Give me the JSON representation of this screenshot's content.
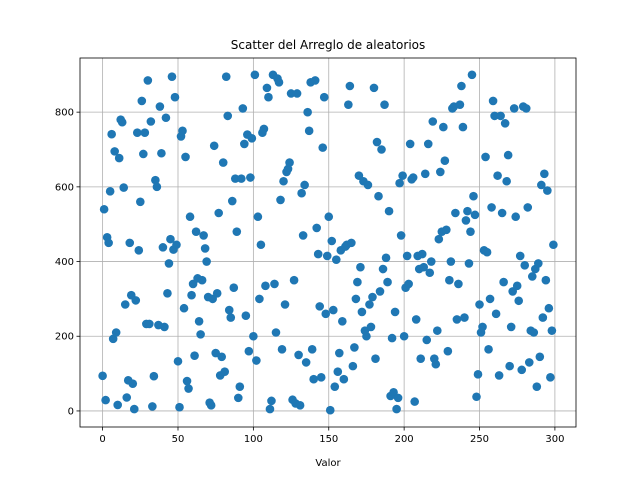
{
  "chart_data": {
    "type": "scatter",
    "title": "Scatter del Arreglo de aleatorios",
    "x_label": "Valor",
    "color": "#1f77b4",
    "grid": true,
    "xlim": [
      -15,
      314
    ],
    "ylim": [
      -43,
      945
    ],
    "xticks": [
      0,
      50,
      100,
      150,
      200,
      250,
      300
    ],
    "yticks": [
      0,
      200,
      400,
      600,
      800
    ],
    "x": [
      0,
      1,
      2,
      3,
      4,
      5,
      6,
      7,
      8,
      9,
      10,
      11,
      12,
      13,
      14,
      15,
      16,
      17,
      18,
      19,
      20,
      21,
      22,
      23,
      24,
      25,
      26,
      27,
      28,
      29,
      30,
      31,
      32,
      33,
      34,
      35,
      36,
      37,
      38,
      39,
      40,
      41,
      42,
      43,
      44,
      45,
      46,
      47,
      48,
      49,
      50,
      51,
      52,
      53,
      54,
      55,
      56,
      57,
      58,
      59,
      60,
      61,
      62,
      63,
      64,
      65,
      66,
      67,
      68,
      69,
      70,
      71,
      72,
      73,
      74,
      75,
      76,
      77,
      78,
      79,
      80,
      81,
      82,
      83,
      84,
      85,
      86,
      87,
      88,
      89,
      90,
      91,
      92,
      93,
      94,
      95,
      96,
      97,
      98,
      99,
      100,
      101,
      102,
      103,
      104,
      105,
      106,
      107,
      108,
      109,
      110,
      111,
      112,
      113,
      114,
      115,
      116,
      117,
      118,
      119,
      120,
      121,
      122,
      123,
      124,
      125,
      126,
      127,
      128,
      129,
      130,
      131,
      132,
      133,
      134,
      135,
      136,
      137,
      138,
      139,
      140,
      141,
      142,
      143,
      144,
      145,
      146,
      147,
      148,
      149,
      150,
      151,
      152,
      153,
      154,
      155,
      156,
      157,
      158,
      159,
      160,
      161,
      162,
      163,
      164,
      165,
      166,
      167,
      168,
      169,
      170,
      171,
      172,
      173,
      174,
      175,
      176,
      177,
      178,
      179,
      180,
      181,
      182,
      183,
      184,
      185,
      186,
      187,
      188,
      189,
      190,
      191,
      192,
      193,
      194,
      195,
      196,
      197,
      198,
      199,
      200,
      201,
      202,
      203,
      204,
      205,
      206,
      207,
      208,
      209,
      210,
      211,
      212,
      213,
      214,
      215,
      216,
      217,
      218,
      219,
      220,
      221,
      222,
      223,
      224,
      225,
      226,
      227,
      228,
      229,
      230,
      231,
      232,
      233,
      234,
      235,
      236,
      237,
      238,
      239,
      240,
      241,
      242,
      243,
      244,
      245,
      246,
      247,
      248,
      249,
      250,
      251,
      252,
      253,
      254,
      255,
      256,
      257,
      258,
      259,
      260,
      261,
      262,
      263,
      264,
      265,
      266,
      267,
      268,
      269,
      270,
      271,
      272,
      273,
      274,
      275,
      276,
      277,
      278,
      279,
      280,
      281,
      282,
      283,
      284,
      285,
      286,
      287,
      288,
      289,
      290,
      291,
      292,
      293,
      294,
      295,
      296,
      297,
      298,
      299
    ],
    "values": [
      94,
      540,
      29,
      465,
      450,
      588,
      741,
      193,
      695,
      210,
      16,
      677,
      780,
      773,
      598,
      285,
      36,
      82,
      450,
      310,
      73,
      5,
      296,
      745,
      430,
      560,
      830,
      688,
      745,
      233,
      885,
      233,
      775,
      12,
      93,
      618,
      600,
      230,
      815,
      690,
      438,
      225,
      785,
      315,
      395,
      460,
      895,
      432,
      840,
      445,
      133,
      10,
      735,
      750,
      275,
      680,
      80,
      60,
      520,
      310,
      340,
      148,
      480,
      355,
      240,
      205,
      350,
      470,
      435,
      400,
      305,
      22,
      15,
      300,
      710,
      155,
      315,
      530,
      95,
      145,
      665,
      105,
      895,
      790,
      270,
      250,
      562,
      330,
      622,
      480,
      35,
      65,
      622,
      810,
      715,
      255,
      740,
      160,
      625,
      730,
      200,
      900,
      135,
      520,
      300,
      445,
      745,
      755,
      335,
      865,
      840,
      5,
      27,
      900,
      340,
      210,
      890,
      880,
      565,
      165,
      615,
      285,
      640,
      648,
      665,
      850,
      30,
      350,
      20,
      850,
      150,
      15,
      583,
      470,
      605,
      130,
      800,
      750,
      880,
      165,
      85,
      885,
      490,
      420,
      280,
      90,
      705,
      840,
      260,
      415,
      520,
      2,
      455,
      270,
      65,
      405,
      105,
      155,
      430,
      240,
      85,
      440,
      445,
      820,
      870,
      450,
      120,
      170,
      300,
      345,
      630,
      385,
      265,
      615,
      215,
      200,
      605,
      285,
      225,
      305,
      865,
      140,
      720,
      575,
      320,
      700,
      380,
      820,
      410,
      345,
      535,
      40,
      195,
      50,
      265,
      5,
      35,
      610,
      470,
      630,
      200,
      330,
      415,
      340,
      715,
      620,
      625,
      25,
      245,
      415,
      380,
      140,
      420,
      385,
      635,
      190,
      715,
      370,
      400,
      775,
      140,
      125,
      215,
      460,
      640,
      480,
      760,
      670,
      485,
      160,
      350,
      400,
      810,
      815,
      530,
      245,
      340,
      820,
      870,
      760,
      250,
      510,
      535,
      395,
      480,
      900,
      575,
      525,
      38,
      98,
      285,
      210,
      225,
      430,
      680,
      425,
      165,
      300,
      545,
      830,
      790,
      260,
      630,
      95,
      790,
      530,
      345,
      770,
      615,
      685,
      120,
      225,
      320,
      810,
      520,
      335,
      295,
      415,
      110,
      815,
      390,
      810,
      545,
      130,
      215,
      360,
      210,
      380,
      65,
      395,
      145,
      605,
      250,
      635,
      350,
      590,
      275,
      90,
      215,
      445
    ]
  }
}
